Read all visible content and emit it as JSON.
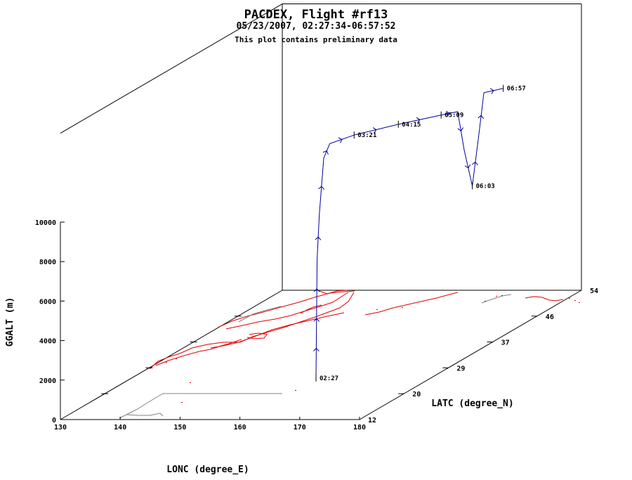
{
  "header": {
    "title": "PACDEX, Flight #rf13",
    "subtitle": "05/23/2007, 02:27:34-06:57:52",
    "note": "This plot contains preliminary data"
  },
  "chart_data": {
    "type": "line",
    "projection": "3d",
    "xlabel": "LONC (degree_E)",
    "ylabel": "LATC (degree_N)",
    "zlabel": "GGALT (m)",
    "xlim": [
      130,
      180
    ],
    "ylim": [
      12,
      54
    ],
    "zlim": [
      0,
      10000
    ],
    "x_ticks": [
      "130",
      "140",
      "150",
      "160",
      "170",
      "180"
    ],
    "y_ticks": [
      "12",
      "20",
      "29",
      "37",
      "46",
      "54"
    ],
    "z_ticks": [
      "0",
      "2000",
      "4000",
      "6000",
      "8000",
      "10000"
    ],
    "colors": {
      "track": "#00009c",
      "coast": "#e00000",
      "shadow": "#808080",
      "axes": "#000000"
    },
    "series": [
      {
        "points": [
          {
            "time": "02:27",
            "lon": 160.8,
            "lat": 25.5,
            "alt": 0
          },
          {
            "lon": 160.9,
            "lat": 25.6,
            "alt": 6000
          },
          {
            "lon": 161.0,
            "lat": 25.9,
            "alt": 8200
          },
          {
            "lon": 161.3,
            "lat": 26.4,
            "alt": 11000
          },
          {
            "lon": 161.6,
            "lat": 27.2,
            "alt": 11600
          },
          {
            "time": "03:21",
            "lon": 163.2,
            "lat": 30.0,
            "alt": 11600
          },
          {
            "time": "04:15",
            "lon": 167.5,
            "lat": 33.5,
            "alt": 11600
          },
          {
            "time": "05:09",
            "lon": 172.0,
            "lat": 36.5,
            "alt": 11600
          },
          {
            "lon": 173.8,
            "lat": 37.6,
            "alt": 11600
          },
          {
            "lon": 174.0,
            "lat": 38.6,
            "alt": 9500
          },
          {
            "time": "06:03",
            "lon": 174.3,
            "lat": 39.8,
            "alt": 7500
          },
          {
            "lon": 174.7,
            "lat": 40.5,
            "alt": 9800
          },
          {
            "lon": 175.0,
            "lat": 41.2,
            "alt": 12000
          },
          {
            "time": "06:57",
            "lon": 177.0,
            "lat": 42.6,
            "alt": 12000
          }
        ]
      }
    ]
  }
}
